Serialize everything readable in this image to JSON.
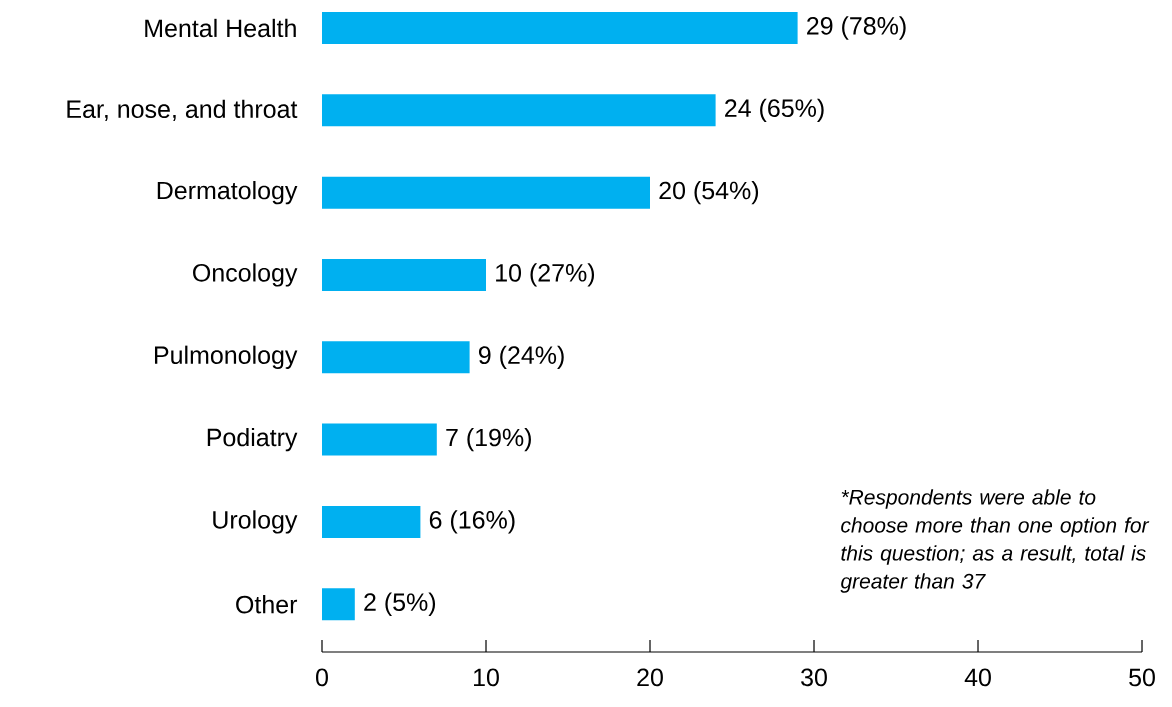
{
  "chart_data": {
    "type": "bar",
    "orientation": "horizontal",
    "categories": [
      "Mental Health",
      "Ear, nose, and throat",
      "Dermatology",
      "Oncology",
      "Pulmonology",
      "Podiatry",
      "Urology",
      "Other"
    ],
    "values": [
      29,
      24,
      20,
      10,
      9,
      7,
      6,
      2
    ],
    "value_labels": [
      "29 (78%)",
      "24 (65%)",
      "20 (54%)",
      "10 (27%)",
      "9 (24%)",
      "7 (19%)",
      "6 (16%)",
      "2 (5%)"
    ],
    "color": "#00b0f0",
    "xlim": [
      0,
      50
    ],
    "xticks": [
      0,
      10,
      20,
      30,
      40,
      50
    ],
    "annotations": [
      "*Respondents were able to choose more than one option for this question; as a result, total is greater than 37"
    ]
  }
}
